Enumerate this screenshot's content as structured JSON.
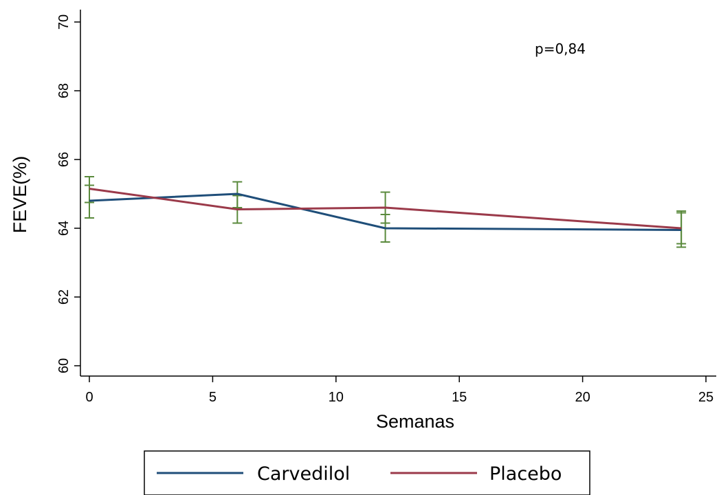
{
  "chart_data": {
    "type": "line",
    "xlabel": "Semanas",
    "ylabel": "FEVE(%)",
    "xlim": [
      0,
      25
    ],
    "ylim": [
      60,
      70
    ],
    "xticks": [
      0,
      5,
      10,
      15,
      20,
      25
    ],
    "yticks": [
      60,
      62,
      64,
      66,
      68,
      70
    ],
    "grid": false,
    "legend_position": "bottom",
    "annotation": "p=0,84",
    "error_bar_color": "#5a8a3c",
    "series": [
      {
        "name": "Carvedilol",
        "color": "#1f4e79",
        "x": [
          0,
          6,
          12,
          24
        ],
        "y": [
          64.8,
          65.0,
          64.0,
          63.95
        ],
        "error_low": [
          64.3,
          64.6,
          63.6,
          63.45
        ],
        "error_high": [
          65.25,
          65.35,
          64.4,
          64.45
        ]
      },
      {
        "name": "Placebo",
        "color": "#9b3a4a",
        "x": [
          0,
          6,
          12,
          24
        ],
        "y": [
          65.15,
          64.55,
          64.6,
          64.0
        ],
        "error_low": [
          64.75,
          64.15,
          64.15,
          63.55
        ],
        "error_high": [
          65.5,
          64.95,
          65.05,
          64.5
        ]
      }
    ]
  }
}
